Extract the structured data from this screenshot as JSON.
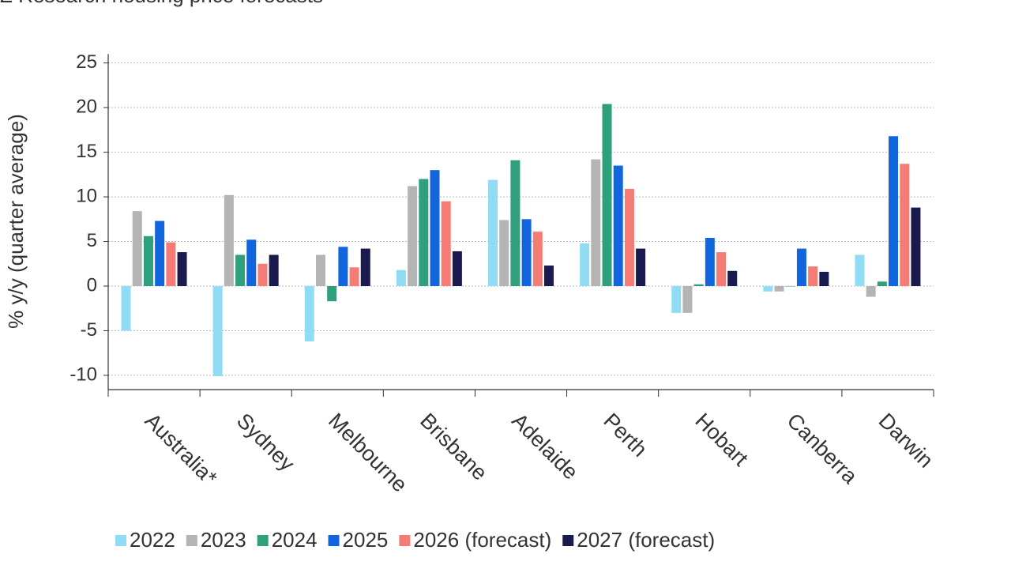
{
  "chart_data": {
    "type": "bar",
    "title": "Z Research housing price forecasts",
    "y_label": "% y/y (quarter average)",
    "categories": [
      "Australia*",
      "Sydney",
      "Melbourne",
      "Brisbane",
      "Adelaide",
      "Perth",
      "Hobart",
      "Canberra",
      "Darwin"
    ],
    "series": [
      {
        "name": "2022",
        "color": "#8fdcf4",
        "values": [
          -5.0,
          -10.1,
          -6.2,
          1.8,
          11.9,
          4.8,
          -3.0,
          -0.6,
          3.5
        ]
      },
      {
        "name": "2023",
        "color": "#b4b4b4",
        "values": [
          8.4,
          10.2,
          3.5,
          11.2,
          7.4,
          14.2,
          -3.0,
          -0.6,
          -1.2
        ]
      },
      {
        "name": "2024",
        "color": "#2ea07e",
        "values": [
          5.6,
          3.5,
          -1.7,
          12.0,
          14.1,
          20.4,
          0.2,
          0.0,
          0.5
        ]
      },
      {
        "name": "2025",
        "color": "#1166dd",
        "values": [
          7.3,
          5.2,
          4.4,
          13.0,
          7.5,
          13.5,
          5.4,
          4.2,
          16.8
        ]
      },
      {
        "name": "2026 (forecast)",
        "color": "#f47c74",
        "values": [
          4.9,
          2.5,
          2.1,
          9.5,
          6.1,
          10.9,
          3.8,
          2.2,
          13.7
        ]
      },
      {
        "name": "2027 (forecast)",
        "color": "#1a1a4e",
        "values": [
          3.8,
          3.5,
          4.2,
          3.9,
          2.3,
          4.2,
          1.7,
          1.6,
          8.8
        ]
      }
    ],
    "ylim": [
      -11.6,
      26
    ],
    "yticks": [
      -10,
      -5,
      0,
      5,
      10,
      15,
      20,
      25
    ],
    "grid": true,
    "legend": "bottom"
  }
}
